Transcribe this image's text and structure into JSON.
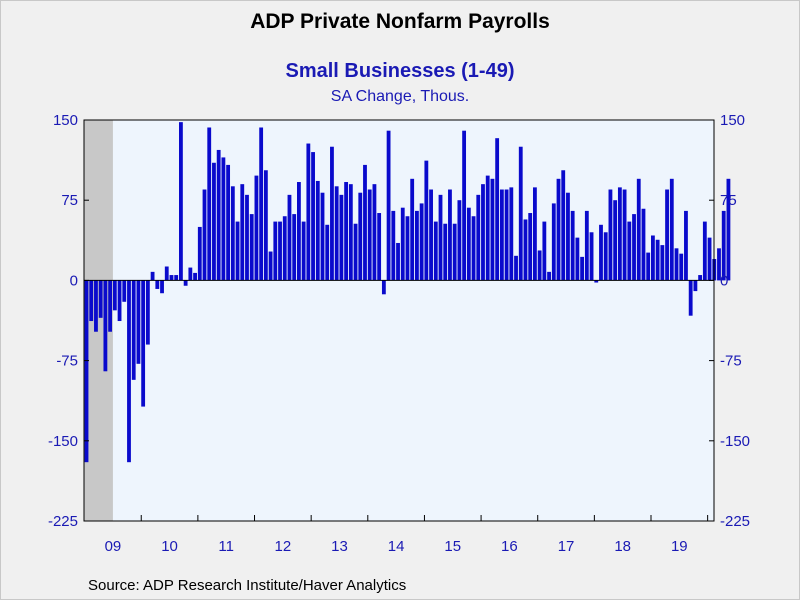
{
  "chart_data": {
    "type": "bar",
    "title": "ADP Private Nonfarm Payrolls",
    "subtitle": "Small Businesses (1-49)",
    "units": "SA Change, Thous.",
    "source": "Source:  ADP Research Institute/Haver Analytics",
    "start": "2009-01",
    "recession": {
      "from": "2009-01",
      "to": "2009-06"
    },
    "ylim": [
      -225,
      150
    ],
    "yticks": [
      150,
      75,
      0,
      -75,
      -150,
      -225
    ],
    "xlabels": [
      "09",
      "10",
      "11",
      "12",
      "13",
      "14",
      "15",
      "16",
      "17",
      "18",
      "19"
    ],
    "colors": {
      "bar": "#0a0acc",
      "plot_bg": "#eef5fd",
      "recession": "#c8c8c8",
      "axis_text": "#1a1ab4"
    },
    "values": [
      -170,
      -38,
      -48,
      -35,
      -85,
      -48,
      -28,
      -38,
      -20,
      -170,
      -93,
      -78,
      -118,
      -60,
      8,
      -8,
      -12,
      13,
      5,
      5,
      148,
      -5,
      12,
      7,
      50,
      85,
      143,
      110,
      122,
      115,
      108,
      88,
      55,
      90,
      80,
      62,
      98,
      143,
      103,
      27,
      55,
      55,
      60,
      80,
      62,
      92,
      55,
      128,
      120,
      93,
      82,
      52,
      125,
      88,
      80,
      92,
      90,
      53,
      82,
      108,
      85,
      90,
      63,
      -13,
      140,
      65,
      35,
      68,
      60,
      95,
      65,
      72,
      112,
      85,
      55,
      80,
      53,
      85,
      53,
      75,
      140,
      68,
      60,
      80,
      90,
      98,
      95,
      133,
      85,
      85,
      87,
      23,
      125,
      57,
      63,
      87,
      28,
      55,
      8,
      72,
      95,
      103,
      82,
      65,
      40,
      22,
      65,
      45,
      -2,
      52,
      45,
      85,
      75,
      87,
      85,
      55,
      62,
      95,
      67,
      26,
      42,
      38,
      33,
      85,
      95,
      30,
      25,
      65,
      -33,
      -10,
      5,
      55,
      40,
      20,
      30,
      65,
      95
    ]
  }
}
